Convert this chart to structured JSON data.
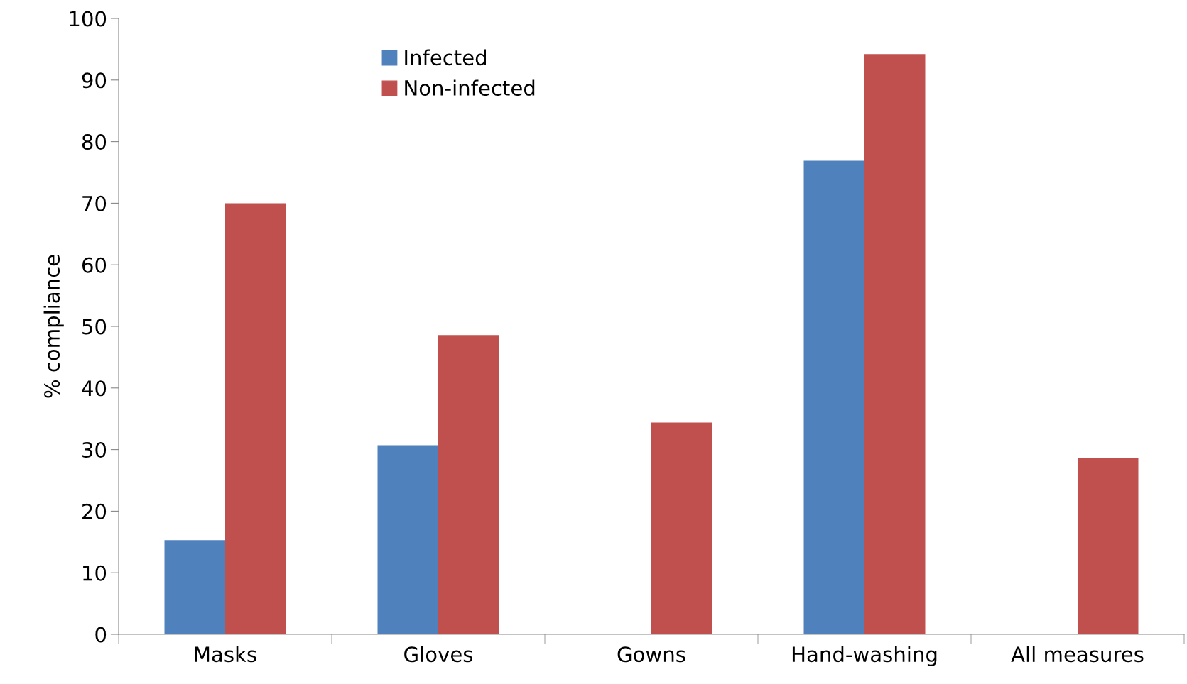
{
  "chart_data": {
    "type": "bar",
    "ylabel": "% compliance",
    "categories": [
      "Masks",
      "Gloves",
      "Gowns",
      "Hand-washing",
      "All measures"
    ],
    "series": [
      {
        "name": "Infected",
        "color": "#4f81bd",
        "values": [
          15.3,
          30.7,
          0,
          76.9,
          0
        ]
      },
      {
        "name": "Non-infected",
        "color": "#c0504d",
        "values": [
          70,
          48.6,
          34.4,
          94.2,
          28.6
        ]
      }
    ],
    "ylim": [
      0,
      100
    ],
    "yticks": [
      0,
      10,
      20,
      30,
      40,
      50,
      60,
      70,
      80,
      90,
      100
    ],
    "grid": false,
    "legend": "top left"
  }
}
